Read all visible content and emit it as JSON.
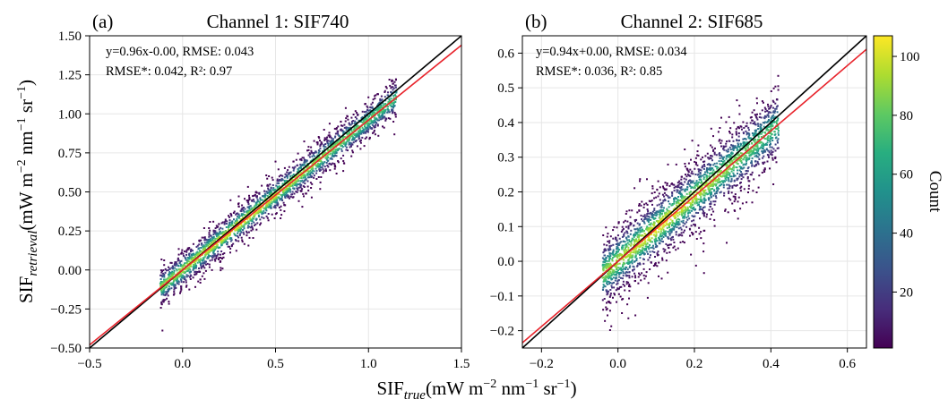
{
  "figure": {
    "xlabel_main": "SIF",
    "xlabel_sub": "true",
    "xlabel_units": "(mW m",
    "ylabel_main": "SIF",
    "ylabel_sub": "retrieval",
    "units_exp1": "−2",
    "units_mid": " nm",
    "units_exp2": "−1",
    "units_end1": " sr",
    "units_exp3": "−1",
    "units_close": ")"
  },
  "colorbar": {
    "label": "Count",
    "ticks": [
      20,
      40,
      60,
      80,
      100
    ],
    "range": [
      1,
      107
    ],
    "colormap": "viridis"
  },
  "colors": {
    "identity_line": "#000000",
    "fit_line": "#e8232b",
    "grid": "#e6e6e6"
  },
  "chart_data": [
    {
      "type": "scatter",
      "panel_letter": "(a)",
      "title": "Channel 1: SIF740",
      "stats_line1": "y=0.96x-0.00, RMSE: 0.043",
      "stats_line2": "RMSE*: 0.042, R²: 0.97",
      "xlim": [
        -0.5,
        1.5
      ],
      "ylim": [
        -0.5,
        1.5
      ],
      "xticks": [
        -0.5,
        0.0,
        0.5,
        1.0,
        1.5
      ],
      "xtick_labels": [
        "−0.5",
        "0.0",
        "0.5",
        "1.0",
        "1.5"
      ],
      "yticks": [
        -0.5,
        -0.25,
        0.0,
        0.25,
        0.5,
        0.75,
        1.0,
        1.25,
        1.5
      ],
      "ytick_labels": [
        "−0.50",
        "−0.25",
        "0.00",
        "0.25",
        "0.50",
        "0.75",
        "1.00",
        "1.25",
        "1.50"
      ],
      "grid": true,
      "fit": {
        "slope": 0.96,
        "intercept": 0.0
      },
      "density": {
        "x_range": [
          -0.12,
          1.15
        ],
        "slope": 0.96,
        "spread": 0.06,
        "peak_count": 107
      }
    },
    {
      "type": "scatter",
      "panel_letter": "(b)",
      "title": "Channel 2: SIF685",
      "stats_line1": "y=0.94x+0.00, RMSE: 0.034",
      "stats_line2": "RMSE*: 0.036, R²: 0.85",
      "xlim": [
        -0.25,
        0.65
      ],
      "ylim": [
        -0.25,
        0.65
      ],
      "xticks": [
        -0.2,
        0.0,
        0.2,
        0.4,
        0.6
      ],
      "xtick_labels": [
        "−0.2",
        "0.0",
        "0.2",
        "0.4",
        "0.6"
      ],
      "yticks": [
        -0.2,
        -0.1,
        0.0,
        0.1,
        0.2,
        0.3,
        0.4,
        0.5,
        0.6
      ],
      "ytick_labels": [
        "−0.2",
        "−0.1",
        "0.0",
        "0.1",
        "0.2",
        "0.3",
        "0.4",
        "0.5",
        "0.6"
      ],
      "grid": true,
      "fit": {
        "slope": 0.94,
        "intercept": 0.0
      },
      "density": {
        "x_range": [
          -0.04,
          0.42
        ],
        "slope": 0.94,
        "spread": 0.05,
        "peak_count": 107
      }
    }
  ]
}
